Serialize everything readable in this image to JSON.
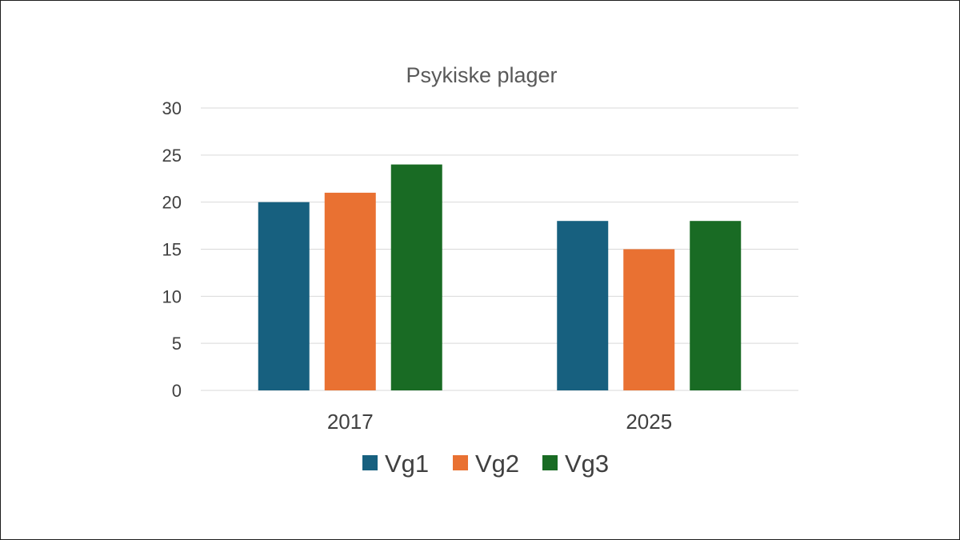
{
  "chart_data": {
    "type": "bar",
    "title": "Psykiske plager",
    "xlabel": "",
    "ylabel": "",
    "categories": [
      "2017",
      "2025"
    ],
    "series": [
      {
        "name": "Vg1",
        "values": [
          20,
          18
        ],
        "color": "#17607f"
      },
      {
        "name": "Vg2",
        "values": [
          21,
          15
        ],
        "color": "#e97132"
      },
      {
        "name": "Vg3",
        "values": [
          24,
          18
        ],
        "color": "#196b24"
      }
    ],
    "ylim": [
      0,
      30
    ],
    "yticks": [
      "0",
      "5",
      "10",
      "15",
      "20",
      "25",
      "30"
    ],
    "grid": true,
    "legend_position": "bottom"
  }
}
